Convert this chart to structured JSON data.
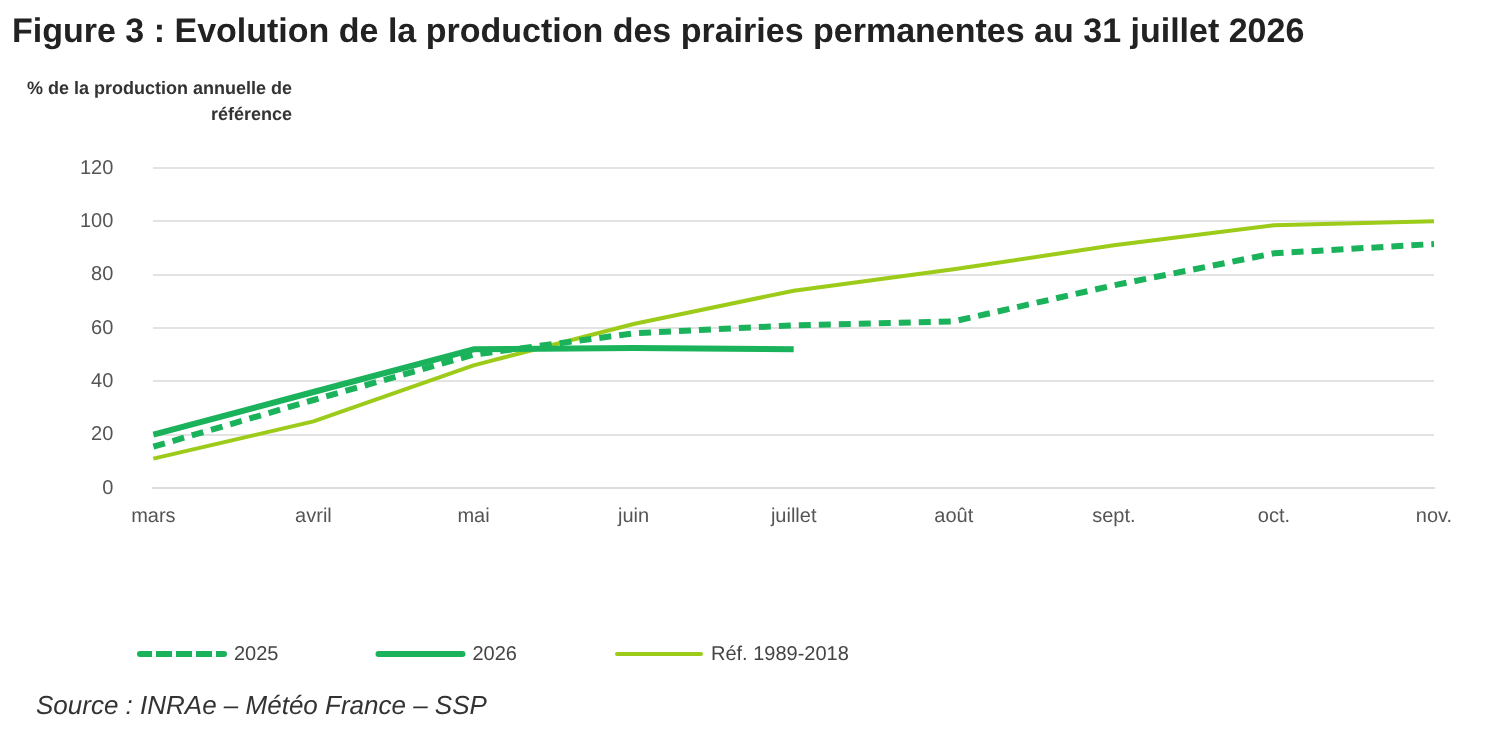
{
  "chart_data": {
    "type": "line",
    "title": "Figure 3 : Evolution de la production des prairies permanentes au 31 juillet 2026",
    "ylabel": "% de la production annuelle de référence",
    "categories": [
      "mars",
      "avril",
      "mai",
      "juin",
      "juillet",
      "août",
      "sept.",
      "oct.",
      "nov."
    ],
    "series": [
      {
        "name": "2025",
        "color": "#1ab25a",
        "line_style": "dashed",
        "values": [
          15.5,
          33,
          50,
          58,
          61,
          62.5,
          76,
          88,
          91.5
        ]
      },
      {
        "name": "2026",
        "color": "#1ab25a",
        "line_style": "solid",
        "values": [
          20,
          36,
          52,
          52.5,
          52,
          null,
          null,
          null,
          null
        ]
      },
      {
        "name": "Réf. 1989-2018",
        "color": "#9ccb19",
        "line_style": "solid",
        "values": [
          11,
          25,
          46,
          61.5,
          74,
          82,
          91,
          98.5,
          100
        ]
      }
    ],
    "ylim": [
      0,
      120
    ],
    "yticks": [
      0,
      20,
      40,
      60,
      80,
      100,
      120
    ],
    "grid": "y",
    "legend": "bottom",
    "marker": "none",
    "annotations": [
      "Source : INRAe – Météo France – SSP"
    ]
  }
}
